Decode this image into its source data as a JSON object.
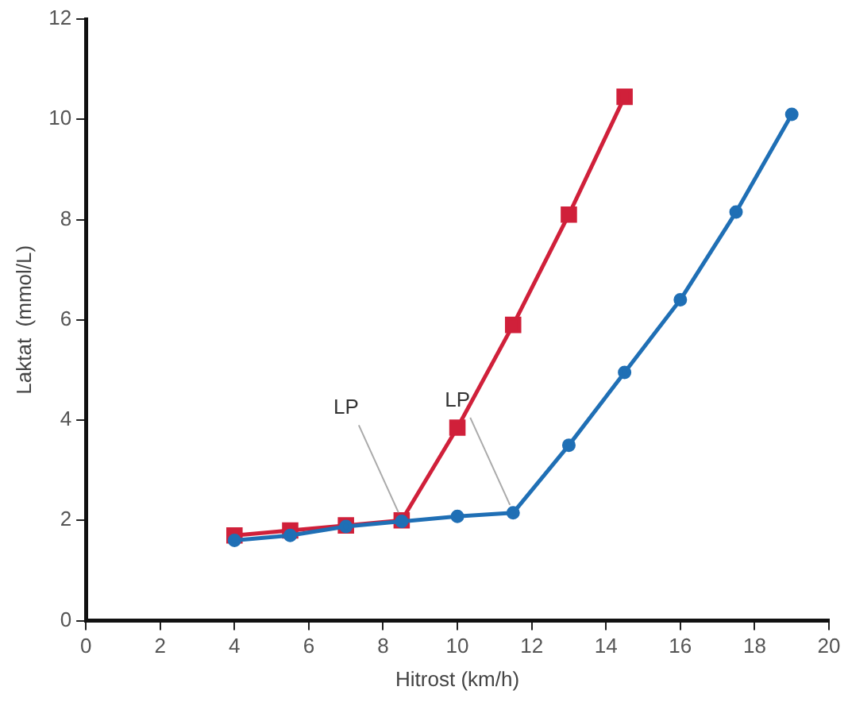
{
  "chart_data": {
    "type": "line",
    "xlabel": "Hitrost (km/h)",
    "ylabel": "Laktat  (mmol/L)",
    "xlim": [
      0,
      20
    ],
    "xticks": [
      0,
      2,
      4,
      6,
      8,
      10,
      12,
      14,
      16,
      18,
      20
    ],
    "ylim": [
      0,
      12
    ],
    "yticks": [
      0,
      2,
      4,
      6,
      8,
      10,
      12
    ],
    "grid": false,
    "legend": false,
    "line_style": "solid",
    "series": [
      {
        "color": "#d0203a",
        "marker": "square",
        "x": [
          4,
          5.5,
          7,
          8.5,
          10,
          11.5,
          13,
          14.5
        ],
        "values": [
          1.7,
          1.8,
          1.9,
          2.0,
          3.85,
          5.9,
          8.1,
          10.45
        ]
      },
      {
        "color": "#1f6fb5",
        "marker": "circle",
        "x": [
          4,
          5.5,
          7,
          8.5,
          10,
          11.5,
          13,
          14.5,
          16,
          17.5,
          19
        ],
        "values": [
          1.6,
          1.7,
          1.88,
          1.98,
          2.08,
          2.15,
          3.5,
          4.95,
          6.4,
          8.15,
          10.1
        ]
      }
    ],
    "annotations": [
      {
        "text": "LP",
        "x": 8.5,
        "y": 2.0
      },
      {
        "text": "LP",
        "x": 11.5,
        "y": 2.15
      }
    ]
  }
}
